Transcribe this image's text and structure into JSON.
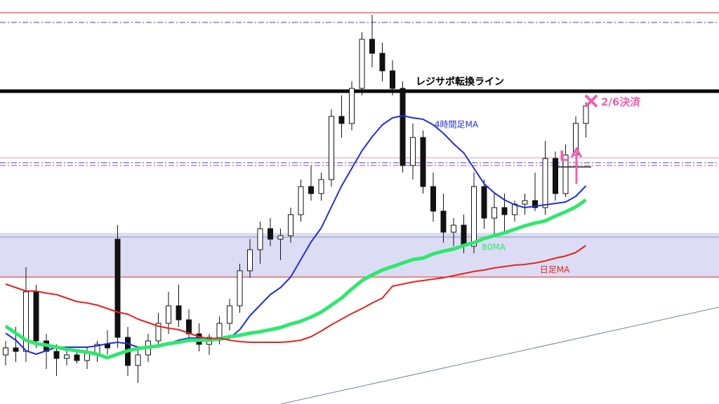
{
  "chart_data": {
    "type": "candlestick",
    "ylim": [
      0,
      576
    ],
    "ohlc": [
      [
        70,
        90,
        55,
        80
      ],
      [
        80,
        110,
        60,
        75
      ],
      [
        75,
        195,
        60,
        160
      ],
      [
        160,
        170,
        80,
        90
      ],
      [
        90,
        100,
        50,
        75
      ],
      [
        75,
        85,
        40,
        65
      ],
      [
        65,
        80,
        55,
        70
      ],
      [
        70,
        78,
        58,
        62
      ],
      [
        62,
        80,
        50,
        72
      ],
      [
        72,
        90,
        60,
        85
      ],
      [
        85,
        105,
        70,
        80
      ],
      [
        235,
        255,
        80,
        95
      ],
      [
        95,
        110,
        40,
        55
      ],
      [
        55,
        80,
        30,
        70
      ],
      [
        70,
        100,
        60,
        90
      ],
      [
        90,
        130,
        80,
        115
      ],
      [
        115,
        160,
        100,
        140
      ],
      [
        140,
        170,
        110,
        120
      ],
      [
        120,
        135,
        95,
        100
      ],
      [
        100,
        115,
        75,
        85
      ],
      [
        85,
        100,
        70,
        95
      ],
      [
        95,
        125,
        85,
        115
      ],
      [
        115,
        150,
        105,
        140
      ],
      [
        140,
        200,
        130,
        190
      ],
      [
        190,
        235,
        180,
        220
      ],
      [
        220,
        260,
        200,
        250
      ],
      [
        250,
        265,
        225,
        235
      ],
      [
        235,
        250,
        205,
        240
      ],
      [
        240,
        280,
        230,
        270
      ],
      [
        270,
        320,
        260,
        310
      ],
      [
        310,
        340,
        290,
        300
      ],
      [
        300,
        330,
        290,
        320
      ],
      [
        320,
        420,
        310,
        410
      ],
      [
        410,
        440,
        380,
        400
      ],
      [
        400,
        460,
        390,
        450
      ],
      [
        450,
        530,
        440,
        520
      ],
      [
        520,
        555,
        480,
        500
      ],
      [
        500,
        515,
        460,
        475
      ],
      [
        475,
        490,
        440,
        450
      ],
      [
        450,
        460,
        330,
        340
      ],
      [
        340,
        400,
        320,
        380
      ],
      [
        380,
        390,
        300,
        310
      ],
      [
        310,
        330,
        260,
        275
      ],
      [
        275,
        300,
        230,
        245
      ],
      [
        245,
        265,
        225,
        255
      ],
      [
        255,
        270,
        215,
        225
      ],
      [
        225,
        330,
        215,
        310
      ],
      [
        310,
        320,
        250,
        265
      ],
      [
        265,
        300,
        240,
        280
      ],
      [
        280,
        300,
        245,
        270
      ],
      [
        270,
        290,
        260,
        285
      ],
      [
        285,
        300,
        270,
        290
      ],
      [
        290,
        330,
        275,
        280
      ],
      [
        280,
        375,
        270,
        350
      ],
      [
        350,
        360,
        290,
        300
      ],
      [
        300,
        370,
        295,
        355
      ],
      [
        355,
        410,
        330,
        400
      ],
      [
        400,
        430,
        380,
        425
      ]
    ],
    "series": [
      {
        "name": "4時間足MA",
        "color": "#1f2fd8",
        "width": 2,
        "values": [
          101,
          91,
          76,
          71,
          76,
          81,
          81,
          81,
          81,
          83,
          86,
          88,
          86,
          81,
          81,
          84,
          86,
          91,
          94,
          94,
          91,
          91,
          94,
          106,
          126,
          141,
          156,
          166,
          181,
          206,
          231,
          251,
          281,
          311,
          336,
          361,
          381,
          398,
          408,
          411,
          408,
          406,
          398,
          386,
          371,
          358,
          336,
          314,
          301,
          291,
          284,
          280,
          282,
          284,
          286,
          288,
          296,
          311
        ]
      },
      {
        "name": "80MA",
        "color": "#2ee86e",
        "width": 5,
        "values": [
          111,
          101,
          91,
          86,
          84,
          81,
          78,
          76,
          74,
          71,
          66,
          71,
          76,
          79,
          81,
          83,
          86,
          88,
          91,
          91,
          91,
          93,
          96,
          98,
          101,
          103,
          106,
          109,
          114,
          118,
          124,
          131,
          141,
          151,
          164,
          176,
          184,
          191,
          196,
          201,
          206,
          208,
          214,
          218,
          221,
          226,
          230,
          236,
          240,
          244,
          249,
          254,
          258,
          261,
          268,
          274,
          281,
          291
        ]
      },
      {
        "name": "日足MA",
        "color": "#e8221a",
        "width": 2,
        "values": [
          171,
          166,
          161,
          161,
          158,
          156,
          151,
          146,
          144,
          141,
          136,
          131,
          128,
          121,
          116,
          111,
          108,
          106,
          101,
          96,
          93,
          94,
          91,
          89,
          88,
          88,
          88,
          88,
          89,
          91,
          96,
          104,
          113,
          121,
          129,
          136,
          144,
          151,
          168,
          171,
          174,
          176,
          178,
          180,
          183,
          186,
          189,
          191,
          194,
          196,
          198,
          199,
          201,
          204,
          208,
          211,
          216,
          226
        ]
      }
    ],
    "zone": {
      "from": 181,
      "to": 244,
      "color": "#dcdcf5"
    },
    "levels": [
      {
        "value": 558,
        "color": "#e8221a",
        "style": "solid"
      },
      {
        "value": 544,
        "color": "#3b3bd0",
        "style": "dashdot"
      },
      {
        "value": 446,
        "color": "#000000",
        "style": "thick",
        "label": "レジサポ転換ライン"
      },
      {
        "value": 351,
        "color": "#e890b0",
        "style": "solid"
      },
      {
        "value": 344,
        "color": "#3b3bd0",
        "style": "dashdot"
      },
      {
        "value": 340,
        "color": "#b040d0",
        "style": "dashdot"
      },
      {
        "value": 238,
        "color": "#8a9ab0",
        "style": "solid"
      },
      {
        "value": 181,
        "color": "#e8221a",
        "style": "solid"
      }
    ],
    "exit_label": "2/6決済",
    "entry_label": "L"
  }
}
